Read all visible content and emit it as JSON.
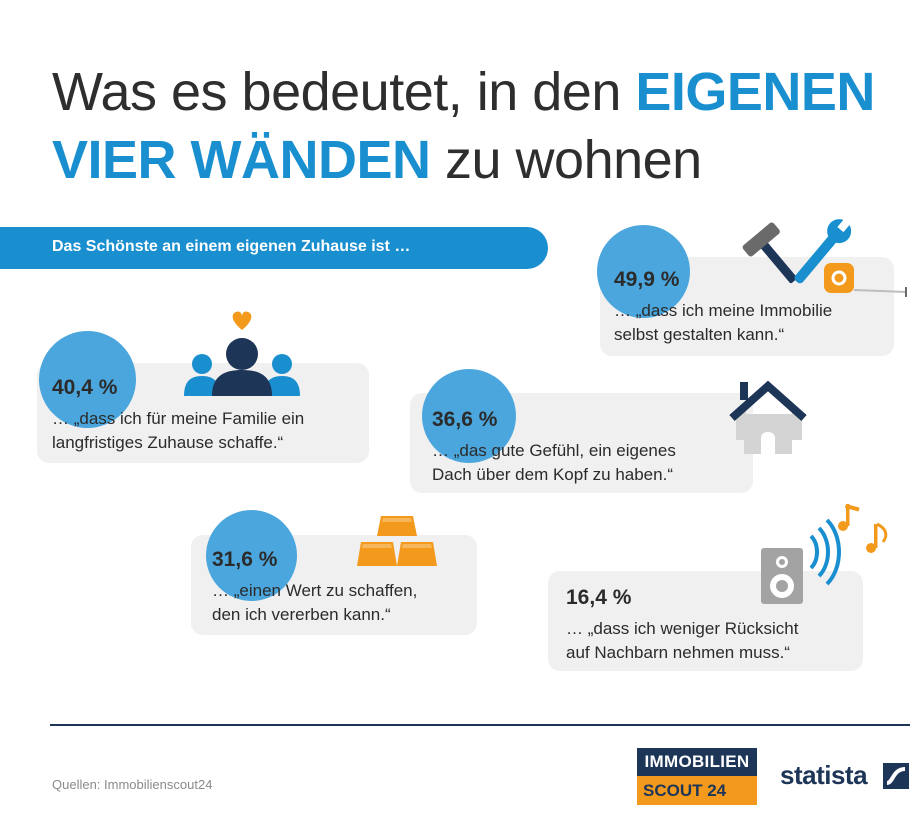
{
  "title": {
    "part1": "Was es bedeutet, in den ",
    "highlight1": "EIGENEN",
    "highlight2": "VIER WÄNDEN",
    "part2": " zu wohnen"
  },
  "banner": "Das Schönste an einem eigenen Zuhause ist …",
  "chart_data": {
    "type": "bar",
    "categories": [
      "… „dass ich meine Immobilie selbst gestalten kann.“",
      "… „dass ich für meine Familie ein langfristiges Zuhause schaffe.“",
      "… „das gute Gefühl, ein eigenes Dach über dem Kopf zu haben.“",
      "… „einen Wert zu schaffen, den ich vererben kann.“",
      "… „dass ich weniger Rücksicht auf Nachbarn nehmen muss.“"
    ],
    "values": [
      49.9,
      40.4,
      36.6,
      31.6,
      16.4
    ],
    "labels": [
      "49,9 %",
      "40,4 %",
      "36,6 %",
      "31,6 %",
      "16,4 %"
    ],
    "title": "Was es bedeutet, in den EIGENEN VIER WÄNDEN zu wohnen",
    "subtitle": "Das Schönste an einem eigenen Zuhause ist …"
  },
  "items": [
    {
      "pct": "49,9 %",
      "line1": "… „dass ich meine Immobilie",
      "line2": "selbst gestalten kann.“",
      "icon": "tools-icon"
    },
    {
      "pct": "40,4 %",
      "line1": "… „dass ich für meine Familie ein",
      "line2": "langfristiges Zuhause schaffe.“",
      "icon": "family-icon"
    },
    {
      "pct": "36,6 %",
      "line1": "… „das gute Gefühl, ein eigenes",
      "line2": "Dach über dem Kopf zu haben.“",
      "icon": "house-icon"
    },
    {
      "pct": "31,6 %",
      "line1": "… „einen Wert zu schaffen,",
      "line2": "den ich vererben kann.“",
      "icon": "gold-bars-icon"
    },
    {
      "pct": "16,4 %",
      "line1": "… „dass ich weniger Rücksicht",
      "line2": "auf Nachbarn nehmen muss.“",
      "icon": "speaker-music-icon"
    }
  ],
  "footer": {
    "source": "Quellen: Immobilienscout24",
    "brand_top": "IMMOBILIEN",
    "brand_bottom": "SCOUT 24",
    "statista": "statista"
  },
  "colors": {
    "accent": "#1a8fd0",
    "circle": "#4aa6dd",
    "bubble": "#f0f0f0",
    "navy": "#1d3557",
    "orange": "#f39a1d"
  }
}
